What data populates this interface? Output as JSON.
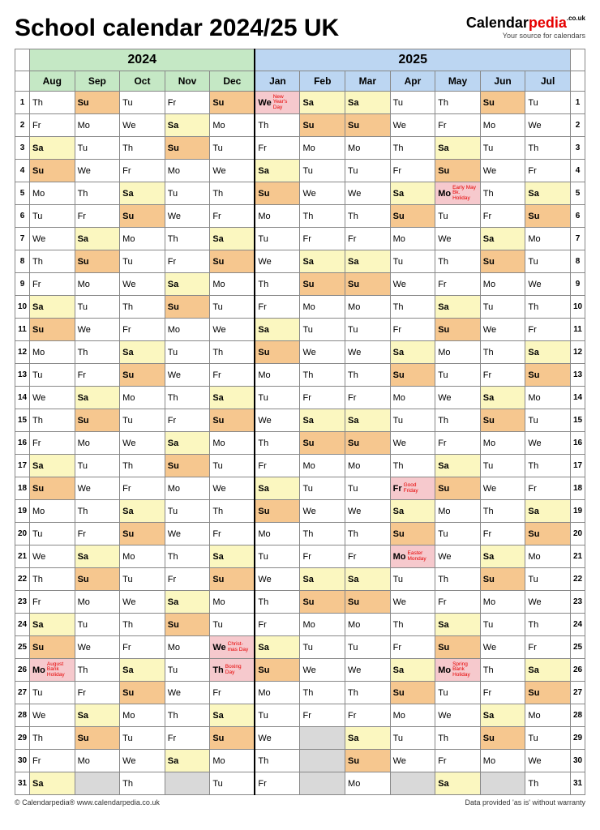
{
  "title": "School calendar 2024/25 UK",
  "brand": {
    "part1": "Calendar",
    "part2": "pedia",
    "suffix": ".co.uk",
    "tagline": "Your source for calendars"
  },
  "footer": {
    "left": "© Calendarpedia®   www.calendarpedia.co.uk",
    "right": "Data provided 'as is' without warranty"
  },
  "colors": {
    "year2024": "#c5e8c5",
    "year2025": "#bcd6f2",
    "sat": "#fbf7c0",
    "sun": "#f6c78f",
    "hol": "#f6c9cd",
    "blank": "#d9d9d9",
    "white": "#ffffff"
  },
  "years": [
    {
      "label": "2024",
      "bg": "#c5e8c5",
      "span": 5
    },
    {
      "label": "2025",
      "bg": "#bcd6f2",
      "span": 7
    }
  ],
  "months": [
    {
      "label": "Aug",
      "bg": "#c5e8c5"
    },
    {
      "label": "Sep",
      "bg": "#c5e8c5"
    },
    {
      "label": "Oct",
      "bg": "#c5e8c5"
    },
    {
      "label": "Nov",
      "bg": "#c5e8c5"
    },
    {
      "label": "Dec",
      "bg": "#c5e8c5"
    },
    {
      "label": "Jan",
      "bg": "#bcd6f2"
    },
    {
      "label": "Feb",
      "bg": "#bcd6f2"
    },
    {
      "label": "Mar",
      "bg": "#bcd6f2"
    },
    {
      "label": "Apr",
      "bg": "#bcd6f2"
    },
    {
      "label": "May",
      "bg": "#bcd6f2"
    },
    {
      "label": "Jun",
      "bg": "#bcd6f2"
    },
    {
      "label": "Jul",
      "bg": "#bcd6f2"
    }
  ],
  "startDow": [
    4,
    0,
    2,
    5,
    0,
    3,
    6,
    6,
    2,
    4,
    0,
    2
  ],
  "monthLen": [
    31,
    30,
    31,
    30,
    31,
    31,
    28,
    31,
    30,
    31,
    30,
    31
  ],
  "dows": [
    "Su",
    "Mo",
    "Tu",
    "We",
    "Th",
    "Fr",
    "Sa"
  ],
  "holidays": {
    "0": {
      "26": "August Bank Holiday"
    },
    "4": {
      "25": "Christ-mas Day",
      "26": "Boxing Day"
    },
    "5": {
      "1": "New Year's Day"
    },
    "8": {
      "18": "Good Friday",
      "21": "Easter Monday"
    },
    "9": {
      "5": "Early May Bk. Holiday",
      "26": "Spring Bank Holiday"
    }
  }
}
